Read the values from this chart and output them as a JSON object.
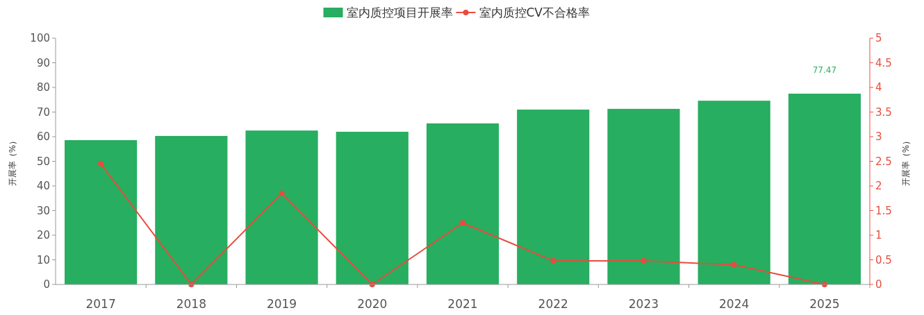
{
  "chart_data": {
    "type": "bar",
    "categories": [
      "2017",
      "2018",
      "2019",
      "2020",
      "2021",
      "2022",
      "2023",
      "2024",
      "2025"
    ],
    "series": [
      {
        "name": "室内质控项目开展率",
        "color": "#27ae60",
        "values": [
          58.6,
          60.3,
          62.5,
          62,
          65.4,
          71,
          71.3,
          74.6,
          77.47
        ],
        "value_labels": [
          null,
          null,
          null,
          null,
          null,
          null,
          null,
          null,
          "77.47"
        ]
      },
      {
        "name": "室内质控CV不合格率",
        "type": "line",
        "axis": "y2",
        "color": "#e84c3d",
        "values": [
          2.45,
          0,
          1.85,
          0,
          1.25,
          0.48,
          0.48,
          0.4,
          0
        ]
      }
    ],
    "ylabel": "开展率（%）",
    "y2label": "开展率（%）",
    "ylim": [
      0,
      100
    ],
    "yticks": [
      0,
      10,
      20,
      30,
      40,
      50,
      60,
      70,
      80,
      90,
      100
    ],
    "y2lim": [
      0,
      5
    ],
    "y2ticks": [
      0,
      0.5,
      1,
      1.5,
      2,
      2.5,
      3,
      3.5,
      4,
      4.5,
      5
    ],
    "legend": "top",
    "marker": "circle",
    "grid": false
  }
}
